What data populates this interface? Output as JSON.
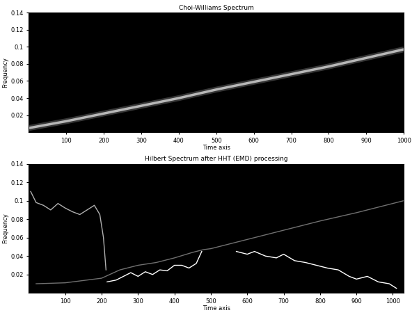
{
  "chart_data": [
    {
      "type": "line",
      "title": "Choi-Williams Spectrum",
      "x_label": "Time axis",
      "y_label": "Frequency",
      "xlim": [
        0,
        1000
      ],
      "ylim": [
        0,
        0.14
      ],
      "xticks": [
        100,
        200,
        300,
        400,
        500,
        600,
        700,
        800,
        900,
        1000
      ],
      "yticks": [
        0.02,
        0.04,
        0.06,
        0.08,
        0.1,
        0.12,
        0.14
      ],
      "series": [
        {
          "color": "#d8d8d8",
          "x": [
            0,
            100,
            200,
            300,
            400,
            500,
            600,
            700,
            800,
            900,
            1000
          ],
          "values": [
            0.005,
            0.013,
            0.022,
            0.031,
            0.04,
            0.05,
            0.059,
            0.068,
            0.077,
            0.087,
            0.097
          ]
        }
      ]
    },
    {
      "type": "line",
      "title": "Hilbert Spectrum after HHT (EMD) processing",
      "x_label": "Time axis",
      "y_label": "Frequency",
      "xlim": [
        0,
        1030
      ],
      "ylim": [
        0,
        0.14
      ],
      "xticks": [
        100,
        200,
        300,
        400,
        500,
        600,
        700,
        800,
        900,
        1000
      ],
      "yticks": [
        0.02,
        0.04,
        0.06,
        0.08,
        0.1,
        0.12,
        0.14
      ],
      "series": [
        {
          "color": "#b0b0b0",
          "x": [
            5,
            20,
            40,
            60,
            80,
            100,
            120,
            140,
            160,
            180,
            195,
            205,
            212
          ],
          "values": [
            0.11,
            0.098,
            0.095,
            0.09,
            0.097,
            0.092,
            0.088,
            0.085,
            0.09,
            0.095,
            0.085,
            0.06,
            0.025
          ]
        },
        {
          "color": "#707070",
          "x": [
            20,
            100,
            200,
            250,
            300,
            350,
            400,
            450,
            480,
            500,
            600,
            700,
            800,
            900,
            1000,
            1030
          ],
          "values": [
            0.01,
            0.011,
            0.016,
            0.025,
            0.03,
            0.033,
            0.038,
            0.044,
            0.047,
            0.048,
            0.058,
            0.068,
            0.078,
            0.087,
            0.097,
            0.1
          ]
        },
        {
          "color": "#ffffff",
          "x": [
            215,
            240,
            260,
            280,
            300,
            320,
            340,
            360,
            380,
            400,
            420,
            440,
            460,
            475
          ],
          "values": [
            0.012,
            0.014,
            0.018,
            0.022,
            0.018,
            0.023,
            0.02,
            0.025,
            0.024,
            0.03,
            0.03,
            0.027,
            0.032,
            0.045
          ]
        },
        {
          "color": "#ffffff",
          "x": [
            570,
            600,
            620,
            650,
            680,
            700,
            730,
            760,
            790,
            820,
            850,
            880,
            900,
            930,
            960,
            990,
            1010
          ],
          "values": [
            0.045,
            0.042,
            0.045,
            0.04,
            0.038,
            0.042,
            0.035,
            0.033,
            0.03,
            0.027,
            0.025,
            0.018,
            0.015,
            0.018,
            0.012,
            0.01,
            0.005
          ]
        }
      ]
    }
  ]
}
